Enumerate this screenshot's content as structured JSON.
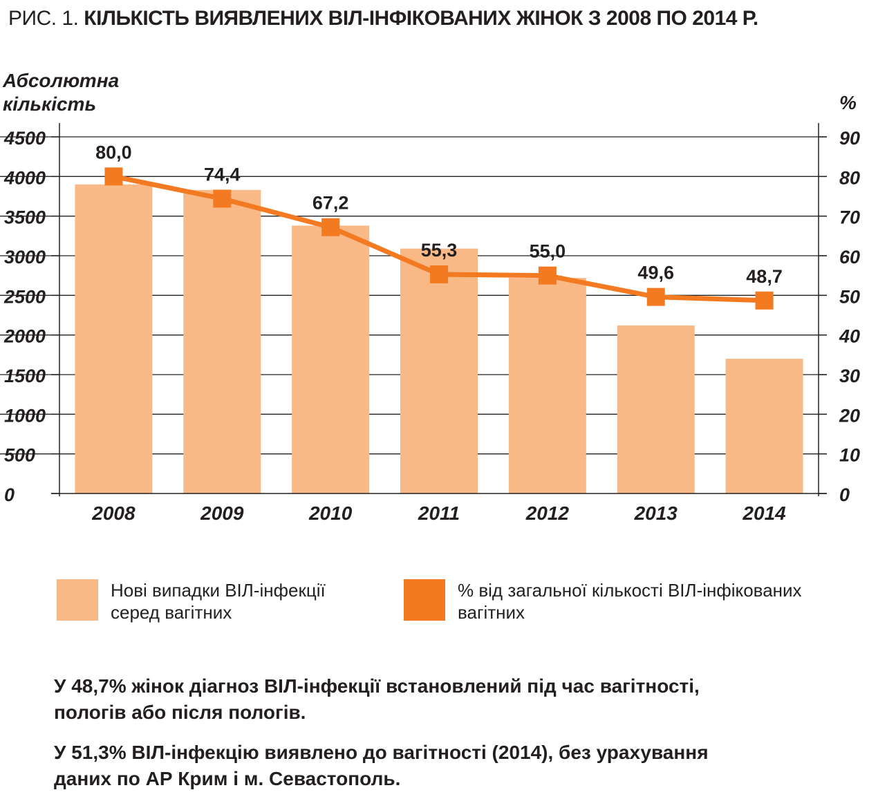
{
  "title": {
    "prefix": "РИС. 1.",
    "main": "КІЛЬКІСТЬ ВИЯВЛЕНИХ ВІЛ-ІНФІКОВАНИХ ЖІНОК З 2008 ПО 2014 Р."
  },
  "chart_data": {
    "type": "bar",
    "title": "КІЛЬКІСТЬ ВИЯВЛЕНИХ ВІЛ-ІНФІКОВАНИХ ЖІНОК З 2008 ПО 2014 Р.",
    "categories": [
      "2008",
      "2009",
      "2010",
      "2011",
      "2012",
      "2013",
      "2014"
    ],
    "ylabel": "Абсолютна кількість",
    "ylabel_right": "%",
    "ylim": [
      0,
      4500
    ],
    "ylim_right": [
      0,
      90
    ],
    "yticks": [
      "0",
      "500",
      "1000",
      "1500",
      "2000",
      "2500",
      "3000",
      "3500",
      "4000",
      "4500"
    ],
    "yticks_right": [
      "0",
      "10",
      "20",
      "30",
      "40",
      "50",
      "60",
      "70",
      "80",
      "90"
    ],
    "grid": true,
    "series": [
      {
        "name": "Нові випадки ВІЛ-інфекції серед вагітних",
        "type": "bar",
        "axis": "left",
        "color": "#f9b987",
        "values": [
          3900,
          3830,
          3380,
          3090,
          2720,
          2120,
          1700
        ]
      },
      {
        "name": "% від загальної кількості ВІЛ-інфікованих вагітних",
        "type": "line",
        "axis": "right",
        "color": "#f37a21",
        "values": [
          80.0,
          74.4,
          67.2,
          55.3,
          55.0,
          49.6,
          48.7
        ],
        "labels": [
          "80,0",
          "74,4",
          "67,2",
          "55,3",
          "55,0",
          "49,6",
          "48,7"
        ]
      }
    ]
  },
  "axis": {
    "left_title_line1": "Абсолютна",
    "left_title_line2": "кількість",
    "right_title": "%"
  },
  "legend": {
    "bar_label_line1": "Нові випадки ВІЛ-інфекції",
    "bar_label_line2": "серед вагітних",
    "line_label_line1": "% від загальної кількості ВІЛ-інфікованих",
    "line_label_line2": "вагітних",
    "bar_color": "#f9b987",
    "line_color": "#f37a21"
  },
  "notes": {
    "note1_line1": "У 48,7% жінок діагноз ВІЛ-інфекції встановлений під час вагітності,",
    "note1_line2": "пологів або після пологів.",
    "note2_line1": "У 51,3% ВІЛ-інфекцію виявлено до вагітності (2014), без урахування",
    "note2_line2": "даних по АР Крим і м. Севастополь."
  }
}
